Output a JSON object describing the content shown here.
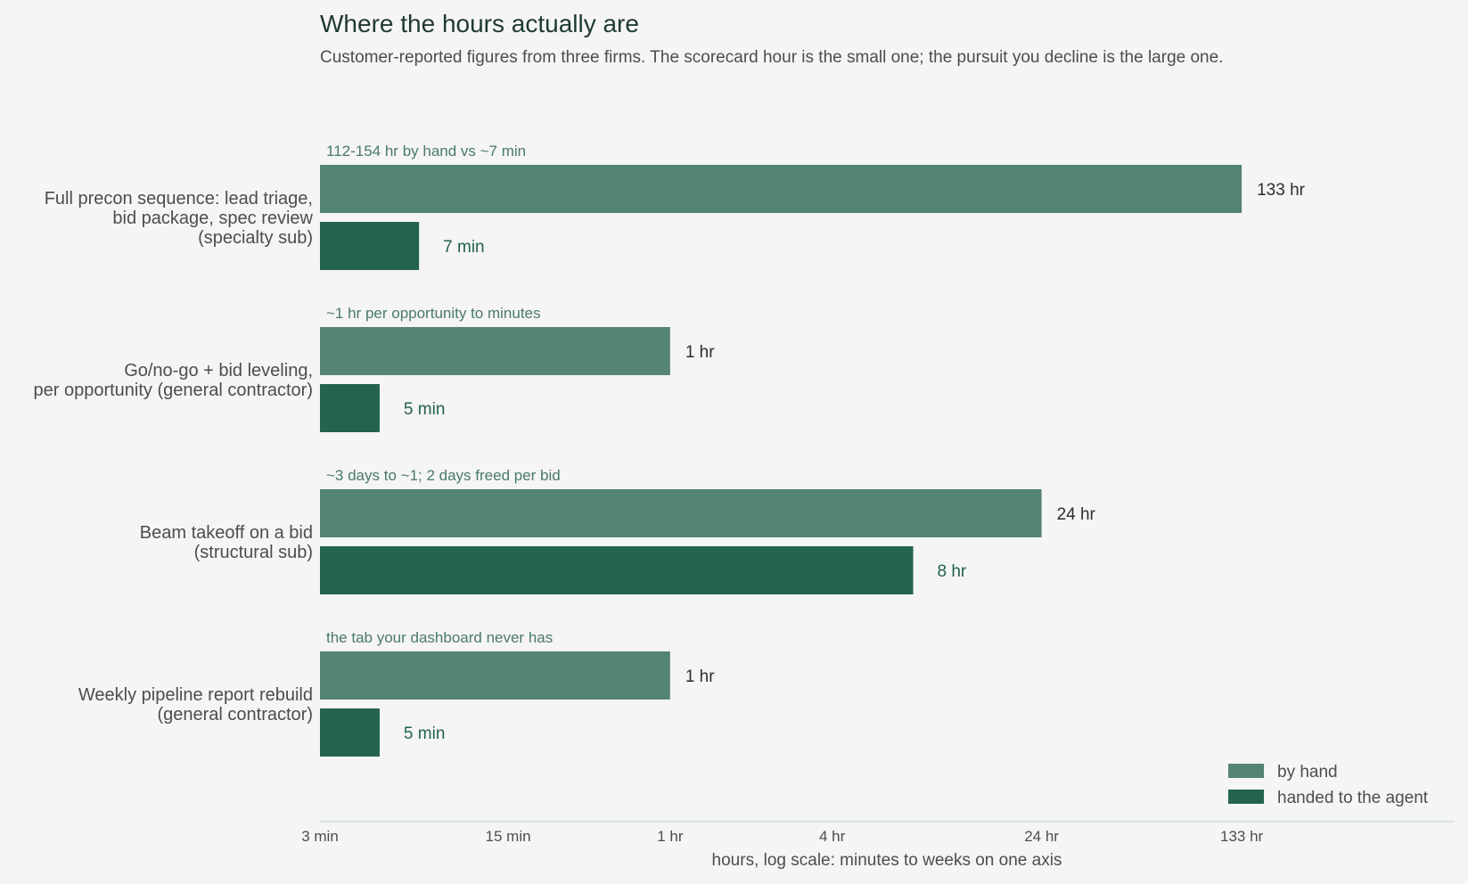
{
  "chart_data": {
    "type": "bar",
    "orientation": "horizontal",
    "title": "Where the hours actually are",
    "subtitle": "Customer-reported figures from three firms. The scorecard hour is the small one; the pursuit you decline is the large one.",
    "xlabel": "hours, log scale: minutes to weeks on one axis",
    "x_scale": "log",
    "x_unit": "hours",
    "xlim": [
      0.05,
      350
    ],
    "x_ticks": [
      {
        "value": 0.05,
        "label": "3 min"
      },
      {
        "value": 0.25,
        "label": "15 min"
      },
      {
        "value": 1,
        "label": "1 hr"
      },
      {
        "value": 4,
        "label": "4 hr"
      },
      {
        "value": 24,
        "label": "24 hr"
      },
      {
        "value": 133,
        "label": "133 hr"
      }
    ],
    "grid": false,
    "legend_position": "bottom-right",
    "categories": [
      {
        "label": [
          "Full precon sequence: lead triage,",
          "bid package, spec review",
          "(specialty sub)"
        ],
        "annotation": "112-154 hr by hand vs ~7 min"
      },
      {
        "label": [
          "Go/no-go + bid leveling,",
          "per opportunity (general contractor)"
        ],
        "annotation": "~1 hr per opportunity to minutes"
      },
      {
        "label": [
          "Beam takeoff on a bid",
          "(structural sub)"
        ],
        "annotation": "~3 days to ~1; 2 days freed per bid"
      },
      {
        "label": [
          "Weekly pipeline report rebuild",
          "(general contractor)"
        ],
        "annotation": "the tab your dashboard never has"
      }
    ],
    "series": [
      {
        "name": "by hand",
        "color": "#548472",
        "values": [
          133,
          1,
          24,
          1
        ],
        "value_labels": [
          "133 hr",
          "1 hr",
          "24 hr",
          "1 hr"
        ]
      },
      {
        "name": "handed to the agent",
        "color": "#246350",
        "values": [
          0.1167,
          0.0833,
          8,
          0.0833
        ],
        "value_labels": [
          "7 min",
          "5 min",
          "8 hr",
          "5 min"
        ]
      }
    ]
  }
}
